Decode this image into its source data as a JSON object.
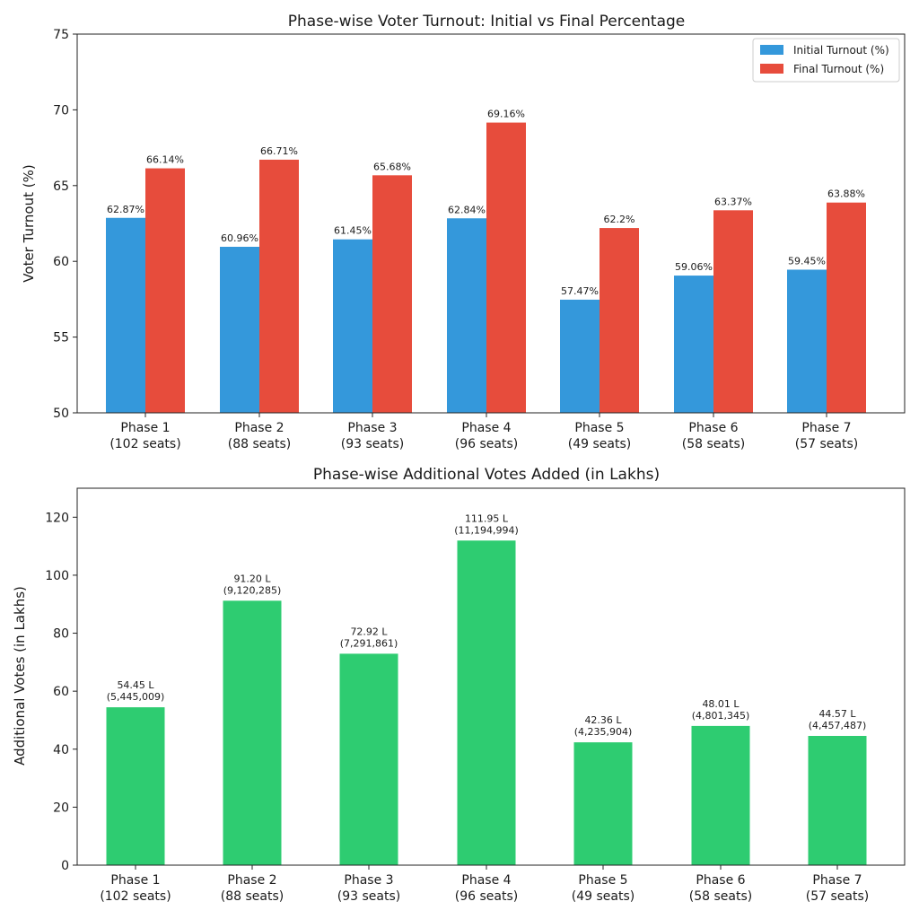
{
  "chart_data": [
    {
      "type": "bar",
      "title": "Phase-wise Voter Turnout: Initial vs Final Percentage",
      "ylabel": "Voter Turnout (%)",
      "xlabel": "",
      "ylim": [
        50,
        75
      ],
      "yticks": [
        50,
        55,
        60,
        65,
        70,
        75
      ],
      "categories": [
        [
          "Phase 1",
          "(102 seats)"
        ],
        [
          "Phase 2",
          "(88 seats)"
        ],
        [
          "Phase 3",
          "(93 seats)"
        ],
        [
          "Phase 4",
          "(96 seats)"
        ],
        [
          "Phase 5",
          "(49 seats)"
        ],
        [
          "Phase 6",
          "(58 seats)"
        ],
        [
          "Phase 7",
          "(57 seats)"
        ]
      ],
      "legend_position": "top-right",
      "grid": false,
      "series": [
        {
          "name": "Initial Turnout (%)",
          "color": "#3498db",
          "values": [
            62.87,
            60.96,
            61.45,
            62.84,
            57.47,
            59.06,
            59.45
          ],
          "labels": [
            "62.87%",
            "60.96%",
            "61.45%",
            "62.84%",
            "57.47%",
            "59.06%",
            "59.45%"
          ]
        },
        {
          "name": "Final Turnout (%)",
          "color": "#e74c3c",
          "values": [
            66.14,
            66.71,
            65.68,
            69.16,
            62.2,
            63.37,
            63.88
          ],
          "labels": [
            "66.14%",
            "66.71%",
            "65.68%",
            "69.16%",
            "62.2%",
            "63.37%",
            "63.88%"
          ]
        }
      ]
    },
    {
      "type": "bar",
      "title": "Phase-wise Additional Votes Added (in Lakhs)",
      "ylabel": "Additional Votes (in Lakhs)",
      "xlabel": "",
      "ylim": [
        0,
        130
      ],
      "yticks": [
        0,
        20,
        40,
        60,
        80,
        100,
        120
      ],
      "categories": [
        [
          "Phase 1",
          "(102 seats)"
        ],
        [
          "Phase 2",
          "(88 seats)"
        ],
        [
          "Phase 3",
          "(93 seats)"
        ],
        [
          "Phase 4",
          "(96 seats)"
        ],
        [
          "Phase 5",
          "(49 seats)"
        ],
        [
          "Phase 6",
          "(58 seats)"
        ],
        [
          "Phase 7",
          "(57 seats)"
        ]
      ],
      "grid": false,
      "series": [
        {
          "color": "#2ecc71",
          "values": [
            54.45,
            91.2,
            72.92,
            111.95,
            42.36,
            48.01,
            44.57
          ],
          "labels": [
            [
              "54.45 L",
              "(5,445,009)"
            ],
            [
              "91.20 L",
              "(9,120,285)"
            ],
            [
              "72.92 L",
              "(7,291,861)"
            ],
            [
              "111.95 L",
              "(11,194,994)"
            ],
            [
              "42.36 L",
              "(4,235,904)"
            ],
            [
              "48.01 L",
              "(4,801,345)"
            ],
            [
              "44.57 L",
              "(4,457,487)"
            ]
          ]
        }
      ]
    }
  ]
}
